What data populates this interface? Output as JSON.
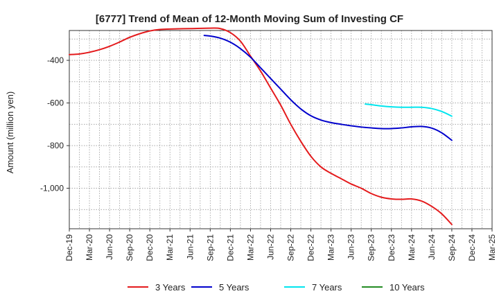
{
  "chart_data": {
    "type": "line",
    "title": "[6777]  Trend of Mean of 12-Month Moving Sum of Investing CF",
    "xlabel": "",
    "ylabel": "Amount (million yen)",
    "ylim": [
      -1190,
      -260
    ],
    "yticks": [
      -400,
      -600,
      -800,
      -1000
    ],
    "ytick_labels": [
      "-400",
      "-600",
      "-800",
      "-1,000"
    ],
    "categories": [
      "Dec-19",
      "Mar-20",
      "Jun-20",
      "Sep-20",
      "Dec-20",
      "Mar-21",
      "Jun-21",
      "Sep-21",
      "Dec-21",
      "Mar-22",
      "Jun-22",
      "Sep-22",
      "Dec-22",
      "Mar-23",
      "Jun-23",
      "Sep-23",
      "Dec-23",
      "Mar-24",
      "Jun-24",
      "Sep-24",
      "Dec-24",
      "Mar-25"
    ],
    "grid": true,
    "legend": "bottom",
    "series": [
      {
        "name": "3 Years",
        "color": "#e41a1c",
        "x": [
          0,
          0.5,
          1,
          1.5,
          2,
          2.5,
          3,
          3.5,
          4,
          4.5,
          5,
          6,
          7,
          7.5,
          8,
          8.5,
          9,
          9.5,
          10,
          10.5,
          11,
          11.5,
          12,
          12.5,
          13,
          13.5,
          14,
          14.5,
          15,
          15.5,
          16,
          16.5,
          17,
          17.5,
          18,
          18.5,
          19
        ],
        "values": [
          -373,
          -370,
          -362,
          -350,
          -334,
          -314,
          -292,
          -275,
          -262,
          -255,
          -253,
          -251,
          -249,
          -251,
          -270,
          -310,
          -380,
          -450,
          -530,
          -610,
          -700,
          -780,
          -850,
          -900,
          -930,
          -955,
          -980,
          -1000,
          -1025,
          -1042,
          -1050,
          -1052,
          -1050,
          -1060,
          -1085,
          -1120,
          -1170
        ]
      },
      {
        "name": "5 Years",
        "color": "#0000cc",
        "x": [
          6.7,
          7,
          7.5,
          8,
          8.5,
          9,
          9.5,
          10,
          10.5,
          11,
          11.5,
          12,
          12.5,
          13,
          13.5,
          14,
          14.5,
          15,
          15.5,
          16,
          16.5,
          17,
          17.5,
          18,
          18.5,
          19
        ],
        "values": [
          -283,
          -286,
          -296,
          -315,
          -345,
          -385,
          -435,
          -485,
          -535,
          -585,
          -628,
          -660,
          -680,
          -692,
          -700,
          -707,
          -713,
          -717,
          -720,
          -720,
          -717,
          -712,
          -710,
          -718,
          -740,
          -775
        ]
      },
      {
        "name": "7 Years",
        "color": "#00e5ee",
        "x": [
          14.7,
          15,
          15.5,
          16,
          16.5,
          17,
          17.5,
          18,
          18.5,
          19
        ],
        "values": [
          -605,
          -608,
          -614,
          -618,
          -620,
          -620,
          -620,
          -626,
          -640,
          -662
        ]
      },
      {
        "name": "10 Years",
        "color": "#228b22",
        "x": [],
        "values": []
      }
    ]
  }
}
